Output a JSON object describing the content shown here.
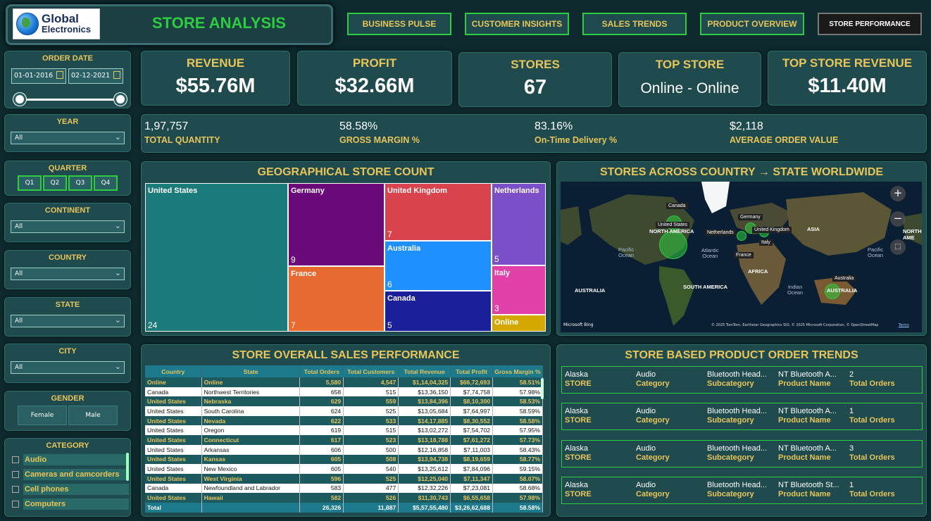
{
  "header": {
    "logo_line1": "Global",
    "logo_line2": "Electronics",
    "title": "STORE ANALYSIS"
  },
  "nav": [
    {
      "label": "BUSINESS PULSE"
    },
    {
      "label": "CUSTOMER INSIGHTS"
    },
    {
      "label": "SALES TRENDS"
    },
    {
      "label": "PRODUCT OVERVIEW"
    },
    {
      "label": "STORE PERFORMANCE"
    }
  ],
  "filters": {
    "order_date": {
      "title": "ORDER DATE",
      "start": "01-01-2016",
      "end": "02-12-2021"
    },
    "year": {
      "title": "YEAR",
      "value": "All"
    },
    "quarter": {
      "title": "QUARTER",
      "options": [
        "Q1",
        "Q2",
        "Q3",
        "Q4"
      ]
    },
    "continent": {
      "title": "CONTINENT",
      "value": "All"
    },
    "country": {
      "title": "COUNTRY",
      "value": "All"
    },
    "state": {
      "title": "STATE",
      "value": "All"
    },
    "city": {
      "title": "CITY",
      "value": "All"
    },
    "gender": {
      "title": "GENDER",
      "options": [
        "Female",
        "Male"
      ]
    },
    "category": {
      "title": "CATEGORY",
      "items": [
        "Audio",
        "Cameras and camcorders",
        "Cell phones",
        "Computers"
      ]
    }
  },
  "kpis": [
    {
      "title": "REVENUE",
      "value": "$55.76M"
    },
    {
      "title": "PROFIT",
      "value": "$32.66M"
    },
    {
      "title": "STORES",
      "value": "67"
    },
    {
      "title": "TOP STORE",
      "value": "Online - Online"
    },
    {
      "title": "TOP STORE REVENUE",
      "value": "$11.40M"
    }
  ],
  "stats": [
    {
      "value": "1,97,757",
      "label": "TOTAL QUANTITY"
    },
    {
      "value": "58.58%",
      "label": "GROSS MARGIN %"
    },
    {
      "value": "83.16%",
      "label": "On-Time Delivery %"
    },
    {
      "value": "$2,118",
      "label": "AVERAGE ORDER VALUE"
    }
  ],
  "treemap": {
    "title": "GEOGRAPHICAL STORE COUNT",
    "items": [
      {
        "name": "United States",
        "count": "24",
        "color": "#1b7a7a"
      },
      {
        "name": "Germany",
        "count": "9",
        "color": "#6a0a7a"
      },
      {
        "name": "France",
        "count": "7",
        "color": "#e86a30"
      },
      {
        "name": "United Kingdom",
        "count": "7",
        "color": "#d9434d"
      },
      {
        "name": "Australia",
        "count": "6",
        "color": "#1e90ff"
      },
      {
        "name": "Canada",
        "count": "5",
        "color": "#1a1f9a"
      },
      {
        "name": "Netherlands",
        "count": "5",
        "color": "#7a4fc7"
      },
      {
        "name": "Italy",
        "count": "3",
        "color": "#e040a8"
      },
      {
        "name": "Online",
        "count": "",
        "color": "#d4a800"
      }
    ]
  },
  "map": {
    "title": "STORES ACROSS COUNTRY → STATE WORLDWIDE",
    "continents": [
      "NORTH AMERICA",
      "SOUTH AMERICA",
      "AFRICA",
      "ASIA",
      "AUSTRALIA",
      "AUSTRALIA",
      "NORTH AME"
    ],
    "oceans": [
      "Pacific\nOcean",
      "Atlantic\nOcean",
      "Indian\nOcean",
      "Pacific\nOcean"
    ],
    "pins": [
      "Canada",
      "United States",
      "Netherlands",
      "Germany",
      "United Kingdom",
      "France",
      "Italy",
      "Australia"
    ],
    "credit_left": "Microsoft Bing",
    "credit_right": "© 2025 TomTom, Earthstar Geographics SIO, © 2025 Microsoft Corporation, © OpenStreetMap",
    "credit_terms": "Terms"
  },
  "sales_table": {
    "title": "STORE OVERALL SALES PERFORMANCE",
    "columns": [
      "Country",
      "State",
      "Total Orders",
      "Total Customers",
      "Total Revenue",
      "Total Profit",
      "Gross Margin %"
    ],
    "rows": [
      [
        "Online",
        "Online",
        "5,580",
        "4,547",
        "$1,14,04,325",
        "$66,72,693",
        "58.51%"
      ],
      [
        "Canada",
        "Northwest Territories",
        "658",
        "515",
        "$13,36,150",
        "$7,74,758",
        "57.98%"
      ],
      [
        "United States",
        "Nebraska",
        "629",
        "559",
        "$13,84,396",
        "$8,10,300",
        "58.53%"
      ],
      [
        "United States",
        "South Carolina",
        "624",
        "525",
        "$13,05,684",
        "$7,64,997",
        "58.59%"
      ],
      [
        "United States",
        "Nevada",
        "622",
        "533",
        "$14,17,885",
        "$8,30,552",
        "58.58%"
      ],
      [
        "United States",
        "Oregon",
        "619",
        "515",
        "$13,02,272",
        "$7,54,702",
        "57.95%"
      ],
      [
        "United States",
        "Connecticut",
        "617",
        "523",
        "$13,18,788",
        "$7,61,272",
        "57.73%"
      ],
      [
        "United States",
        "Arkansas",
        "606",
        "500",
        "$12,16,858",
        "$7,11,003",
        "58.43%"
      ],
      [
        "United States",
        "Kansas",
        "605",
        "508",
        "$13,94,738",
        "$8,19,659",
        "58.77%"
      ],
      [
        "United States",
        "New Mexico",
        "605",
        "540",
        "$13,25,612",
        "$7,84,096",
        "59.15%"
      ],
      [
        "United States",
        "West Virginia",
        "596",
        "525",
        "$12,25,040",
        "$7,11,347",
        "58.07%"
      ],
      [
        "Canada",
        "Newfoundland and Labrador",
        "583",
        "477",
        "$12,32,226",
        "$7,23,081",
        "58.68%"
      ],
      [
        "United States",
        "Hawaii",
        "582",
        "526",
        "$11,30,743",
        "$6,55,658",
        "57.98%"
      ]
    ],
    "total": [
      "Total",
      "",
      "26,326",
      "11,887",
      "$5,57,55,480",
      "$3,26,62,688",
      "58.58%"
    ]
  },
  "product_trends": {
    "title": "STORE BASED PRODUCT ORDER TRENDS",
    "labels": [
      "STORE",
      "Category",
      "Subcategory",
      "Product Name",
      "Total Orders"
    ],
    "cards": [
      [
        "Alaska",
        "Audio",
        "Bluetooth Head...",
        "NT Bluetooth A...",
        "2"
      ],
      [
        "Alaska",
        "Audio",
        "Bluetooth Head...",
        "NT Bluetooth A...",
        "1"
      ],
      [
        "Alaska",
        "Audio",
        "Bluetooth Head...",
        "NT Bluetooth A...",
        "3"
      ],
      [
        "Alaska",
        "Audio",
        "Bluetooth Head...",
        "NT Bluetooth St...",
        "1"
      ]
    ]
  }
}
